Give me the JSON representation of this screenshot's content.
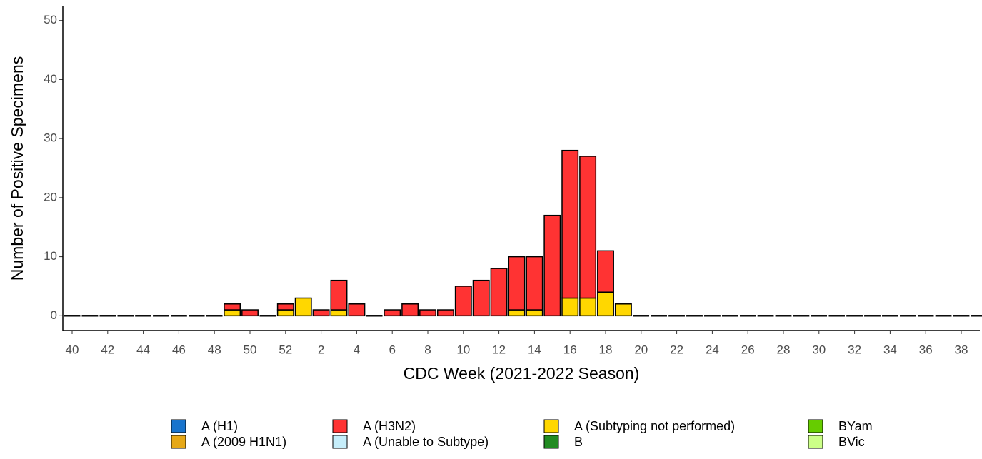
{
  "chart_data": {
    "type": "stacked_bar",
    "x_label": "CDC Week (2021-2022 Season)",
    "y_label": "Number of Positive Specimens",
    "categories": [
      "40",
      null,
      "42",
      null,
      "44",
      null,
      "46",
      null,
      "48",
      null,
      "50",
      null,
      "52",
      null,
      "2",
      null,
      "4",
      null,
      "6",
      null,
      "8",
      null,
      "10",
      null,
      "12",
      null,
      "14",
      null,
      "16",
      null,
      "18",
      null,
      "20",
      null,
      "22",
      null,
      "24",
      null,
      "26",
      null,
      "28",
      null,
      "30",
      null,
      "32",
      null,
      "34",
      null,
      "36",
      null,
      "38",
      null
    ],
    "series": [
      {
        "name": "A (H1)",
        "color": "#1874CD",
        "values": [
          0,
          0,
          0,
          0,
          0,
          0,
          0,
          0,
          0,
          0,
          0,
          0,
          0,
          0,
          0,
          0,
          0,
          0,
          0,
          0,
          0,
          0,
          0,
          0,
          0,
          0,
          0,
          0,
          0,
          0,
          0,
          0,
          0,
          0,
          0,
          0,
          0,
          0,
          0,
          0,
          0,
          0,
          0,
          0,
          0,
          0,
          0,
          0,
          0,
          0,
          0,
          0
        ]
      },
      {
        "name": "A (2009 H1N1)",
        "color": "#E6A817",
        "values": [
          0,
          0,
          0,
          0,
          0,
          0,
          0,
          0,
          0,
          0,
          0,
          0,
          0,
          0,
          0,
          0,
          0,
          0,
          0,
          0,
          0,
          0,
          0,
          0,
          0,
          0,
          0,
          0,
          0,
          0,
          0,
          0,
          0,
          0,
          0,
          0,
          0,
          0,
          0,
          0,
          0,
          0,
          0,
          0,
          0,
          0,
          0,
          0,
          0,
          0,
          0,
          0
        ]
      },
      {
        "name": "A (H3N2)",
        "color": "#FF3333",
        "values": [
          0,
          0,
          0,
          0,
          0,
          0,
          0,
          0,
          0,
          1,
          1,
          0,
          1,
          0,
          1,
          5,
          2,
          0,
          1,
          2,
          1,
          1,
          5,
          6,
          8,
          9,
          9,
          17,
          25,
          24,
          7,
          0,
          0,
          0,
          0,
          0,
          0,
          0,
          0,
          0,
          0,
          0,
          0,
          0,
          0,
          0,
          0,
          0,
          0,
          0,
          0,
          0
        ]
      },
      {
        "name": "A (Unable to Subtype)",
        "color": "#C6EEFA",
        "values": [
          0,
          0,
          0,
          0,
          0,
          0,
          0,
          0,
          0,
          0,
          0,
          0,
          0,
          0,
          0,
          0,
          0,
          0,
          0,
          0,
          0,
          0,
          0,
          0,
          0,
          0,
          0,
          0,
          0,
          0,
          0,
          0,
          0,
          0,
          0,
          0,
          0,
          0,
          0,
          0,
          0,
          0,
          0,
          0,
          0,
          0,
          0,
          0,
          0,
          0,
          0,
          0
        ]
      },
      {
        "name": "A (Subtyping not performed)",
        "color": "#FFD700",
        "values": [
          0,
          0,
          0,
          0,
          0,
          0,
          0,
          0,
          0,
          1,
          0,
          0,
          1,
          3,
          0,
          1,
          0,
          0,
          0,
          0,
          0,
          0,
          0,
          0,
          0,
          1,
          1,
          0,
          3,
          3,
          4,
          2,
          0,
          0,
          0,
          0,
          0,
          0,
          0,
          0,
          0,
          0,
          0,
          0,
          0,
          0,
          0,
          0,
          0,
          0,
          0,
          0
        ]
      },
      {
        "name": "B",
        "color": "#228B22",
        "values": [
          0,
          0,
          0,
          0,
          0,
          0,
          0,
          0,
          0,
          0,
          0,
          0,
          0,
          0,
          0,
          0,
          0,
          0,
          0,
          0,
          0,
          0,
          0,
          0,
          0,
          0,
          0,
          0,
          0,
          0,
          0,
          0,
          0,
          0,
          0,
          0,
          0,
          0,
          0,
          0,
          0,
          0,
          0,
          0,
          0,
          0,
          0,
          0,
          0,
          0,
          0,
          0
        ]
      },
      {
        "name": "BYam",
        "color": "#66CC00",
        "values": [
          0,
          0,
          0,
          0,
          0,
          0,
          0,
          0,
          0,
          0,
          0,
          0,
          0,
          0,
          0,
          0,
          0,
          0,
          0,
          0,
          0,
          0,
          0,
          0,
          0,
          0,
          0,
          0,
          0,
          0,
          0,
          0,
          0,
          0,
          0,
          0,
          0,
          0,
          0,
          0,
          0,
          0,
          0,
          0,
          0,
          0,
          0,
          0,
          0,
          0,
          0,
          0
        ]
      },
      {
        "name": "BVic",
        "color": "#CCFF88",
        "values": [
          0,
          0,
          0,
          0,
          0,
          0,
          0,
          0,
          0,
          0,
          0,
          0,
          0,
          0,
          0,
          0,
          0,
          0,
          0,
          0,
          0,
          0,
          0,
          0,
          0,
          0,
          0,
          0,
          0,
          0,
          0,
          0,
          0,
          0,
          0,
          0,
          0,
          0,
          0,
          0,
          0,
          0,
          0,
          0,
          0,
          0,
          0,
          0,
          0,
          0,
          0,
          0
        ]
      }
    ],
    "ylim": [
      -2.5,
      52.5
    ],
    "yticks": [
      0,
      10,
      20,
      30,
      40,
      50
    ],
    "legend": "bottom"
  }
}
